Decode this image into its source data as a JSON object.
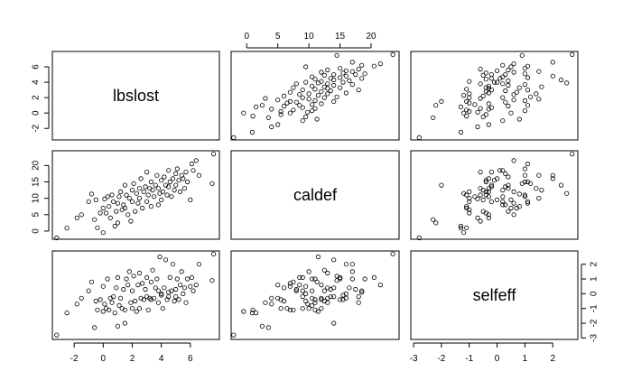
{
  "chart_data": {
    "type": "scatter",
    "kind": "pairs-matrix",
    "variables": [
      {
        "name": "lbslost",
        "range": [
          -3.5,
          8
        ],
        "ticks": [
          "-2",
          "0",
          "2",
          "4",
          "6"
        ],
        "tick_values": [
          -2,
          0,
          2,
          4,
          6
        ]
      },
      {
        "name": "caldef",
        "range": [
          -2.5,
          24.5
        ],
        "ticks": [
          "0",
          "5",
          "10",
          "15",
          "20"
        ],
        "tick_values": [
          0,
          5,
          10,
          15,
          20
        ]
      },
      {
        "name": "selfeff",
        "range": [
          -3.1,
          2.9
        ],
        "ticks": [
          "-3",
          "-2",
          "-1",
          "0",
          "1",
          "2"
        ],
        "tick_values": [
          -3,
          -2,
          -1,
          0,
          1,
          2
        ]
      }
    ],
    "tick_placement": {
      "lbslost": {
        "axis": "bottom",
        "side": "left"
      },
      "caldef": {
        "axis": "top",
        "side": "left"
      },
      "selfeff": {
        "axis": "bottom",
        "side": "right"
      }
    },
    "point_style": "open-circle",
    "grid": false,
    "points": [
      [
        -3.2,
        -2.1,
        -2.8
      ],
      [
        -2.5,
        0.9,
        -1.3
      ],
      [
        -1.8,
        4.0,
        -0.7
      ],
      [
        -1.5,
        5.0,
        -0.3
      ],
      [
        -1.0,
        9.0,
        0.2
      ],
      [
        -0.8,
        11.3,
        0.8
      ],
      [
        -0.6,
        3.5,
        -2.3
      ],
      [
        -0.5,
        9.5,
        -0.5
      ],
      [
        -0.4,
        1.0,
        -1.1
      ],
      [
        -0.2,
        5.5,
        -0.4
      ],
      [
        0.0,
        7.0,
        0.5
      ],
      [
        0.0,
        -0.5,
        -1.2
      ],
      [
        0.1,
        9.8,
        -0.7
      ],
      [
        0.2,
        5.5,
        -1.0
      ],
      [
        0.3,
        10.5,
        1.0
      ],
      [
        0.4,
        7.5,
        -1.1
      ],
      [
        0.5,
        4.0,
        -0.3
      ],
      [
        0.6,
        11.0,
        -0.6
      ],
      [
        0.7,
        9.0,
        -0.2
      ],
      [
        0.8,
        1.5,
        -1.3
      ],
      [
        0.9,
        6.0,
        0.4
      ],
      [
        1.0,
        8.5,
        1.1
      ],
      [
        1.0,
        2.5,
        -2.2
      ],
      [
        1.1,
        10.5,
        -0.8
      ],
      [
        1.2,
        12.0,
        -0.3
      ],
      [
        1.3,
        6.5,
        -1.0
      ],
      [
        1.4,
        8.0,
        0.3
      ],
      [
        1.5,
        14.0,
        -2.0
      ],
      [
        1.5,
        7.0,
        -1.1
      ],
      [
        1.6,
        11.0,
        1.0
      ],
      [
        1.7,
        5.0,
        0.6
      ],
      [
        1.8,
        10.0,
        1.5
      ],
      [
        1.9,
        3.0,
        -0.6
      ],
      [
        2.0,
        12.5,
        0.2
      ],
      [
        2.0,
        9.0,
        -1.0
      ],
      [
        2.1,
        14.5,
        1.2
      ],
      [
        2.2,
        6.0,
        -0.5
      ],
      [
        2.3,
        11.5,
        -1.2
      ],
      [
        2.4,
        8.5,
        0.6
      ],
      [
        2.5,
        13.0,
        1.4
      ],
      [
        2.5,
        10.0,
        -1.0
      ],
      [
        2.6,
        16.0,
        -0.3
      ],
      [
        2.7,
        7.0,
        0.7
      ],
      [
        2.8,
        12.0,
        -0.4
      ],
      [
        2.9,
        13.5,
        0.3
      ],
      [
        3.0,
        18.0,
        -0.2
      ],
      [
        3.0,
        9.0,
        1.1
      ],
      [
        3.1,
        11.0,
        -1.1
      ],
      [
        3.2,
        13.0,
        -0.3
      ],
      [
        3.3,
        7.5,
        0.8
      ],
      [
        3.3,
        15.0,
        -0.4
      ],
      [
        3.4,
        12.5,
        1.6
      ],
      [
        3.5,
        10.5,
        -0.3
      ],
      [
        3.6,
        14.0,
        0.4
      ],
      [
        3.7,
        17.0,
        1.0
      ],
      [
        3.8,
        8.0,
        0.2
      ],
      [
        3.8,
        13.0,
        -0.6
      ],
      [
        3.9,
        11.5,
        2.5
      ],
      [
        4.0,
        15.5,
        -0.1
      ],
      [
        4.0,
        9.5,
        0.0
      ],
      [
        4.1,
        12.0,
        -1.0
      ],
      [
        4.2,
        16.5,
        0.4
      ],
      [
        4.3,
        14.0,
        2.3
      ],
      [
        4.4,
        11.0,
        -0.4
      ],
      [
        4.5,
        18.5,
        0.1
      ],
      [
        4.5,
        13.5,
        -0.2
      ],
      [
        4.6,
        15.0,
        1.1
      ],
      [
        4.7,
        10.5,
        0.2
      ],
      [
        4.8,
        16.0,
        2.0
      ],
      [
        4.9,
        12.5,
        -0.5
      ],
      [
        5.0,
        17.5,
        0.3
      ],
      [
        5.0,
        14.0,
        -0.2
      ],
      [
        5.1,
        19.0,
        1.0
      ],
      [
        5.2,
        15.5,
        -0.4
      ],
      [
        5.3,
        12.0,
        0.6
      ],
      [
        5.4,
        17.0,
        1.5
      ],
      [
        5.5,
        16.0,
        0.0
      ],
      [
        5.6,
        13.0,
        0.4
      ],
      [
        5.7,
        18.0,
        -0.6
      ],
      [
        5.8,
        15.0,
        1.0
      ],
      [
        6.0,
        9.5,
        0.5
      ],
      [
        6.1,
        20.5,
        1.1
      ],
      [
        6.2,
        18.5,
        0.2
      ],
      [
        6.4,
        21.5,
        0.6
      ],
      [
        6.6,
        17.0,
        2.0
      ],
      [
        7.5,
        14.5,
        0.9
      ],
      [
        7.6,
        23.5,
        2.7
      ]
    ]
  }
}
